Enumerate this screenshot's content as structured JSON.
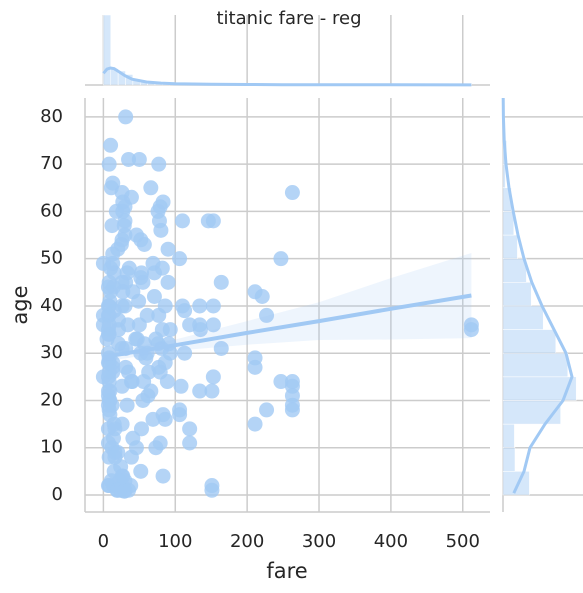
{
  "chart_data": [
    {
      "type": "scatter",
      "title": "titanic fare - reg",
      "x_label": "fare",
      "y_label": "age",
      "color": "#a1c9f4",
      "grid": true,
      "xlim": [
        -25.6,
        537.9
      ],
      "ylim": [
        -3.6,
        84
      ],
      "xticks": [
        0,
        100,
        200,
        300,
        400,
        500
      ],
      "yticks": [
        0,
        10,
        20,
        30,
        40,
        50,
        60,
        70,
        80
      ],
      "x": [
        263,
        263,
        263,
        263,
        263,
        263,
        512,
        512,
        247,
        211,
        221,
        227,
        211,
        211,
        211,
        227,
        247,
        153,
        146,
        153,
        151,
        151,
        151,
        153,
        153,
        134,
        134,
        135,
        134,
        164,
        164,
        120,
        120,
        120,
        110,
        110,
        113,
        113,
        108,
        106,
        106,
        106,
        90,
        90,
        86,
        83,
        82,
        80,
        79,
        78,
        83,
        77,
        76,
        71,
        69,
        66,
        57,
        52,
        49,
        35,
        31,
        50,
        10,
        8,
        11,
        13,
        27,
        26,
        30,
        39,
        7,
        8,
        8,
        7,
        8,
        13,
        26,
        8,
        7,
        8,
        16,
        30,
        7,
        31,
        21,
        8,
        26,
        13,
        8,
        7,
        7,
        8,
        53,
        27,
        30,
        9,
        26,
        15,
        26,
        16,
        21,
        31,
        7,
        8,
        21,
        13,
        8,
        26,
        13,
        7,
        11,
        10,
        35,
        14,
        7,
        29,
        31,
        8,
        13,
        27,
        7,
        8,
        61,
        77,
        57,
        61,
        47,
        34,
        30,
        15,
        40,
        36,
        52,
        55,
        52,
        59,
        71,
        76,
        83,
        89,
        24,
        26,
        39,
        19,
        23,
        41,
        46,
        24,
        12,
        14,
        63,
        73,
        69,
        41,
        56,
        50,
        27,
        15,
        20,
        29,
        7,
        9,
        14,
        20,
        26,
        33,
        46,
        62,
        79,
        93,
        81,
        86,
        91,
        77,
        66,
        55,
        86,
        82,
        93,
        79,
        12,
        18,
        25,
        33,
        39,
        45,
        7,
        9,
        10,
        15,
        0,
        0,
        0,
        0,
        5,
        7,
        8,
        9,
        12,
        7,
        38,
        26,
        30,
        35,
        20,
        52,
        30,
        16,
        73,
        53
      ],
      "values": [
        64,
        24,
        23,
        19,
        18,
        21,
        35,
        36,
        50,
        43,
        42,
        38,
        29,
        27,
        15,
        18,
        24,
        58,
        58,
        25,
        2,
        1,
        22,
        40,
        36,
        40,
        36,
        35,
        22,
        45,
        31,
        36,
        11,
        14,
        58,
        40,
        39,
        30,
        23,
        50,
        17,
        18,
        52,
        45,
        40,
        4,
        48,
        56,
        61,
        58,
        62,
        70,
        60,
        47,
        49,
        65,
        53,
        54,
        41,
        71,
        80,
        71,
        74,
        70,
        65,
        66,
        62,
        64,
        61,
        63,
        22,
        38,
        26,
        35,
        28,
        27,
        54,
        2,
        14,
        20,
        14,
        55,
        2,
        31,
        35,
        34,
        15,
        28,
        8,
        38,
        19,
        40,
        47,
        4,
        58,
        20,
        45,
        5,
        40,
        9,
        32,
        27,
        21,
        24,
        37,
        49,
        29,
        23,
        51,
        25,
        3,
        43,
        26,
        2,
        30,
        0.8,
        45,
        18,
        26,
        60,
        34,
        36,
        30,
        27,
        32,
        38,
        33,
        36,
        40,
        15,
        24,
        48,
        30,
        20,
        46,
        29,
        42,
        32,
        17,
        24,
        6,
        4,
        8,
        1,
        3,
        12,
        10,
        1,
        10,
        12,
        26,
        33,
        16,
        43,
        24,
        36,
        43,
        47,
        52,
        57,
        11,
        17,
        44,
        9,
        31,
        19,
        55,
        21,
        11,
        30,
        31,
        16,
        32,
        38,
        22,
        45,
        28,
        35,
        35,
        26,
        57,
        60,
        53,
        47,
        24,
        33,
        44,
        41,
        48,
        39,
        38,
        49,
        25,
        36,
        33,
        28,
        45,
        22,
        19,
        40,
        2,
        2,
        3,
        1,
        1,
        5,
        0.9,
        8,
        10,
        14
      ],
      "regression": {
        "x": [
          0,
          100,
          200,
          300,
          400,
          512
        ],
        "y": [
          29.2,
          31.7,
          34.3,
          36.8,
          39.4,
          42.2
        ],
        "ci_low": [
          28.2,
          30.5,
          31.8,
          32.8,
          32.9,
          33.2
        ],
        "ci_high": [
          30.2,
          32.9,
          36.8,
          40.8,
          45.9,
          51.2
        ]
      }
    },
    {
      "type": "histogram",
      "orientation": "vertical",
      "color": "#a1c9f4",
      "ylim": [
        0,
        300
      ],
      "bins": [
        0,
        10.25,
        20.49,
        30.74,
        40.99,
        51.23,
        61.48,
        71.73,
        81.97,
        92.22,
        102.47,
        112.71,
        122.96,
        133.21,
        143.45,
        153.7,
        163.95,
        174.19,
        184.44,
        194.69,
        204.93,
        215.18,
        225.43,
        235.68,
        245.92,
        256.17,
        266.42,
        276.66,
        286.91,
        297.16,
        307.4,
        317.65,
        327.9,
        338.14,
        348.39,
        358.64,
        368.88,
        379.13,
        389.38,
        399.62,
        409.87,
        420.12,
        430.36,
        440.61,
        450.86,
        461.1,
        471.35,
        481.6,
        491.84,
        502.09,
        512.33
      ],
      "values": [
        300,
        70,
        60,
        45,
        20,
        15,
        10,
        8,
        12,
        6,
        4,
        5,
        2,
        3,
        4,
        6,
        1,
        0,
        0,
        1,
        2,
        3,
        0,
        0,
        2,
        3,
        0,
        0,
        0,
        0,
        0,
        0,
        0,
        0,
        0,
        0,
        0,
        0,
        0,
        0,
        0,
        0,
        0,
        0,
        0,
        0,
        0,
        0,
        0,
        3
      ],
      "kde": {
        "x": [
          0,
          5,
          10,
          15,
          20,
          30,
          40,
          60,
          80,
          100,
          150,
          200,
          250,
          300,
          400,
          512
        ],
        "y": [
          50,
          68,
          73,
          70,
          60,
          40,
          25,
          13,
          8,
          5,
          3,
          2,
          1.5,
          1,
          0.8,
          0.6
        ]
      }
    },
    {
      "type": "histogram",
      "orientation": "horizontal",
      "color": "#a1c9f4",
      "xlim": [
        0,
        125
      ],
      "bins": [
        0,
        5,
        10,
        15,
        20,
        25,
        30,
        35,
        40,
        45,
        50,
        55,
        60,
        65,
        70,
        75,
        80
      ],
      "values": [
        44,
        20,
        19,
        96,
        122,
        108,
        88,
        67,
        47,
        39,
        24,
        18,
        14,
        4,
        6,
        1
      ],
      "kde": {
        "x": [
          0.4,
          5,
          10,
          15,
          20,
          25,
          30,
          35,
          40,
          45,
          50,
          55,
          60,
          65,
          70,
          75,
          80,
          84
        ],
        "y": [
          18,
          35,
          45,
          70,
          100,
          115,
          105,
          85,
          65,
          48,
          35,
          25,
          17,
          10,
          5,
          2,
          0.7,
          0.3
        ]
      }
    }
  ]
}
